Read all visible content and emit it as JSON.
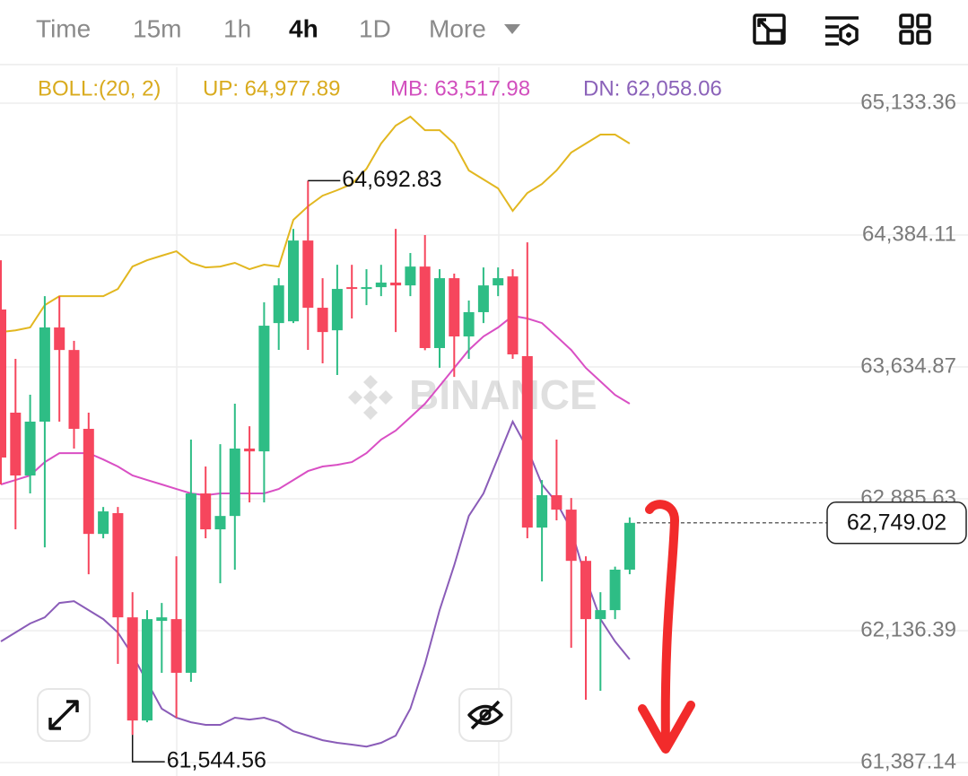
{
  "tabs": [
    "Time",
    "15m",
    "1h",
    "4h",
    "1D",
    "More"
  ],
  "chart_data": {
    "type": "candlestick",
    "indicator": "BOLL:(20, 2)",
    "legend": [
      {
        "label": "UP: 64,977.89",
        "color": "#d9ab1e"
      },
      {
        "label": "MB: 63,517.98",
        "color": "#d24fbe"
      },
      {
        "label": "DN: 62,058.06",
        "color": "#8b62b9"
      }
    ],
    "up_color": "#2ebd85",
    "down_color": "#f6465d",
    "open": [
      63961,
      63375,
      63018,
      63324,
      63859,
      63731,
      63283,
      62686,
      62804,
      62212,
      61626,
      62192,
      62202,
      61897,
      62916,
      62712,
      62788,
      63171,
      63155,
      63884,
      63894,
      64353,
      63971,
      63843,
      64088,
      64078,
      64088,
      64114,
      64098,
      64205,
      63742,
      64139,
      63808,
      63946,
      64098,
      64149,
      63696,
      62722,
      62906,
      62824,
      62533,
      62202,
      62253,
      62483
    ],
    "high": [
      64241,
      63681,
      63477,
      64037,
      64037,
      63783,
      63375,
      62839,
      62839,
      62355,
      62253,
      62294,
      62559,
      63222,
      63069,
      63196,
      63426,
      63298,
      64002,
      64139,
      64419,
      64692.83,
      64139,
      64215,
      64215,
      64190,
      64215,
      64419,
      64282,
      64384,
      64190,
      64165,
      64012,
      64200,
      64200,
      64190,
      64343,
      62992,
      63222,
      62890,
      62559,
      62355,
      62500,
      62780
    ],
    "low": [
      62967,
      62712,
      62916,
      62610,
      63324,
      63171,
      62457,
      62661,
      61948,
      61544.56,
      61616,
      61897,
      61642,
      61846,
      62661,
      62406,
      62483,
      62865,
      62865,
      63732,
      63884,
      63732,
      63655,
      63589,
      63910,
      63986,
      64037,
      63833,
      64037,
      63730,
      63630,
      63578,
      63681,
      63884,
      64037,
      63681,
      62661,
      62416,
      62763,
      62039,
      61744,
      61795,
      62202,
      62457
    ],
    "close": [
      63120,
      63018,
      63324,
      63859,
      63731,
      63283,
      62686,
      62814,
      62212,
      61626,
      62202,
      62212,
      61897,
      62916,
      62712,
      62788,
      63171,
      63155,
      63869,
      64098,
      64353,
      63971,
      63833,
      64078,
      64078,
      64088,
      64114,
      64098,
      64205,
      63742,
      64139,
      63808,
      63946,
      64098,
      64139,
      63706,
      62722,
      62906,
      62824,
      62533,
      62202,
      62253,
      62483,
      62749.02
    ],
    "bands": [
      {
        "color": "#e2b720",
        "values": [
          63833,
          63843,
          63859,
          63986,
          64037,
          64037,
          64037,
          64037,
          64078,
          64205,
          64241,
          64267,
          64292,
          64226,
          64200,
          64205,
          64226,
          64190,
          64216,
          64205,
          64470,
          64547,
          64608,
          64639,
          64674,
          64761,
          64904,
          65006,
          65057,
          64980,
          64980,
          64904,
          64751,
          64700,
          64649,
          64521,
          64623,
          64674,
          64751,
          64853,
          64904,
          64955,
          64955,
          64904
        ]
      },
      {
        "color": "#d94fc4",
        "values": [
          62967,
          62992,
          63018,
          63094,
          63145,
          63145,
          63145,
          63109,
          63069,
          63018,
          62992,
          62967,
          62941,
          62916,
          62906,
          62916,
          62916,
          62916,
          62916,
          62941,
          62992,
          63043,
          63069,
          63079,
          63094,
          63145,
          63222,
          63273,
          63349,
          63426,
          63527,
          63629,
          63731,
          63808,
          63859,
          63925,
          63910,
          63884,
          63808,
          63731,
          63629,
          63553,
          63476,
          63426
        ]
      },
      {
        "color": "#8a5cb8",
        "values": [
          62075,
          62126,
          62177,
          62212,
          62294,
          62304,
          62253,
          62202,
          62126,
          61998,
          61845,
          61693,
          61642,
          61616,
          61601,
          61601,
          61642,
          61631,
          61642,
          61616,
          61565,
          61540,
          61514,
          61499,
          61489,
          61478,
          61499,
          61540,
          61693,
          61947,
          62253,
          62508,
          62788,
          62916,
          63120,
          63324,
          63171,
          62967,
          62865,
          62712,
          62432,
          62202,
          62075,
          61973
        ]
      }
    ],
    "ylim": [
      61310.61,
      65337.24
    ],
    "yticks": [
      {
        "value": 65133.36,
        "label": "65,133.36"
      },
      {
        "value": 64384.11,
        "label": "64,384.11"
      },
      {
        "value": 63634.87,
        "label": "63,634.87"
      },
      {
        "value": 62885.63,
        "label": "62,885.63"
      },
      {
        "value": 62136.39,
        "label": "62,136.39"
      },
      {
        "value": 61387.14,
        "label": "61,387.14"
      }
    ],
    "annotations": [
      {
        "value": 64692.83,
        "label": "64,692.83"
      },
      {
        "value": 61544.56,
        "label": "61,544.56"
      }
    ],
    "last_price": {
      "value": 62749.02,
      "label": "62,749.02"
    },
    "watermark": "BINANCE"
  }
}
